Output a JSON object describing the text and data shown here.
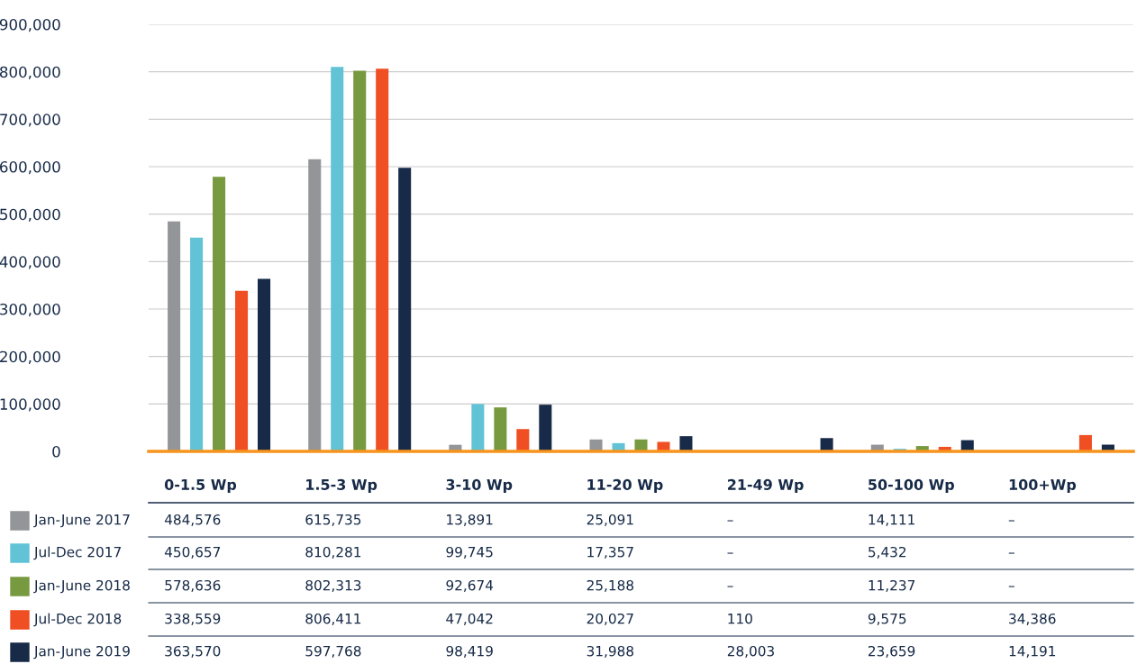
{
  "chart_data": {
    "type": "bar",
    "categories": [
      "0-1.5 Wp",
      "1.5-3 Wp",
      "3-10 Wp",
      "11-20 Wp",
      "21-49 Wp",
      "50-100 Wp",
      "100+Wp"
    ],
    "series": [
      {
        "name": "Jan-June 2017",
        "color": "#939598",
        "values": [
          484576,
          615735,
          13891,
          25091,
          null,
          14111,
          null
        ],
        "value_labels": [
          "484,576",
          "615,735",
          "13,891",
          "25,091",
          "–",
          "14,111",
          "–"
        ]
      },
      {
        "name": "Jul-Dec 2017",
        "color": "#62c3d6",
        "values": [
          450657,
          810281,
          99745,
          17357,
          null,
          5432,
          null
        ],
        "value_labels": [
          "450,657",
          "810,281",
          "99,745",
          "17,357",
          "–",
          "5,432",
          "–"
        ]
      },
      {
        "name": "Jan-June 2018",
        "color": "#77993f",
        "values": [
          578636,
          802313,
          92674,
          25188,
          null,
          11237,
          null
        ],
        "value_labels": [
          "578,636",
          "802,313",
          "92,674",
          "25,188",
          "–",
          "11,237",
          "–"
        ]
      },
      {
        "name": "Jul-Dec 2018",
        "color": "#f04e23",
        "values": [
          338559,
          806411,
          47042,
          20027,
          110,
          9575,
          34386
        ],
        "value_labels": [
          "338,559",
          "806,411",
          "47,042",
          "20,027",
          "110",
          "9,575",
          "34,386"
        ]
      },
      {
        "name": "Jan-June 2019",
        "color": "#172a47",
        "values": [
          363570,
          597768,
          98419,
          31988,
          28003,
          23659,
          14191
        ],
        "value_labels": [
          "363,570",
          "597,768",
          "98,419",
          "31,988",
          "28,003",
          "23,659",
          "14,191"
        ]
      }
    ],
    "ylim": [
      0,
      900000
    ],
    "yticks": [
      {
        "value": 0,
        "label": "0"
      },
      {
        "value": 100000,
        "label": "100,000"
      },
      {
        "value": 200000,
        "label": "200,000"
      },
      {
        "value": 300000,
        "label": "300,000"
      },
      {
        "value": 400000,
        "label": "400,000"
      },
      {
        "value": 500000,
        "label": "500,000"
      },
      {
        "value": 600000,
        "label": "600,000"
      },
      {
        "value": 700000,
        "label": "700,000"
      },
      {
        "value": 800000,
        "label": "800,000"
      },
      {
        "value": 900000,
        "label": "900,000"
      }
    ],
    "grid": "y",
    "legend": "bottom left"
  }
}
